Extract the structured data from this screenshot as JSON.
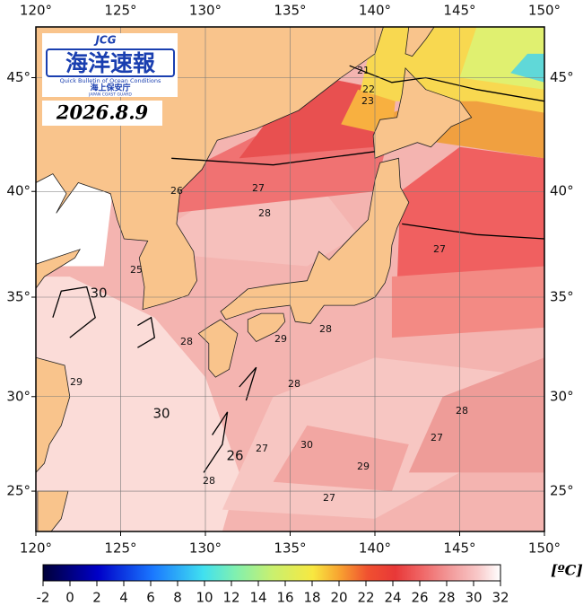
{
  "logo": {
    "mark": "JCG",
    "title": "海洋速報",
    "subtitle": "Quick Bulletin of Ocean Conditions",
    "agency": "海上保安庁",
    "agency_en": "JAPAN COAST GUARD"
  },
  "date": "2026.8.9",
  "map": {
    "xlim": [
      120,
      150
    ],
    "ylim": [
      22.8,
      47.1
    ],
    "xticks": [
      {
        "value": 120,
        "label": "120°"
      },
      {
        "value": 125,
        "label": "125°"
      },
      {
        "value": 130,
        "label": "130°"
      },
      {
        "value": 135,
        "label": "135°"
      },
      {
        "value": 140,
        "label": "140°"
      },
      {
        "value": 145,
        "label": "145°"
      },
      {
        "value": 150,
        "label": "150°"
      }
    ],
    "yticks": [
      {
        "value": 25,
        "label": "25°"
      },
      {
        "value": 30,
        "label": "30°"
      },
      {
        "value": 35,
        "label": "35°"
      },
      {
        "value": 40,
        "label": "40°"
      },
      {
        "value": 45,
        "label": "45°"
      }
    ],
    "grid": true,
    "contour_labels": [
      21,
      22,
      23,
      26,
      27,
      28,
      25,
      30,
      28,
      29,
      28,
      29,
      28,
      30,
      28,
      27,
      27,
      27,
      30,
      26,
      29,
      28,
      27
    ]
  },
  "colorbar": {
    "unit": "[ºC]",
    "ticks": [
      -2,
      0,
      2,
      4,
      6,
      8,
      10,
      12,
      14,
      16,
      18,
      20,
      22,
      24,
      26,
      28,
      30,
      32
    ]
  }
}
